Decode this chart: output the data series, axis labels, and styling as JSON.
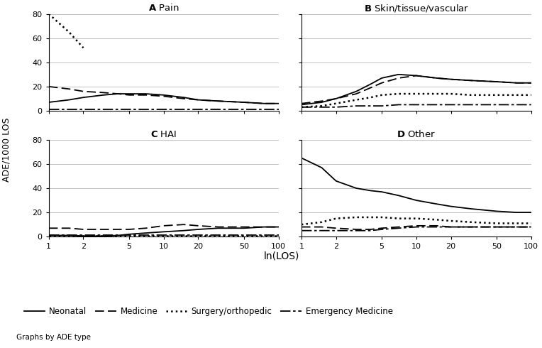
{
  "x_ticks": [
    1,
    2,
    5,
    10,
    20,
    50,
    100
  ],
  "x_values": [
    1,
    1.5,
    2,
    3,
    4,
    5,
    7,
    10,
    15,
    20,
    30,
    50,
    75,
    100
  ],
  "panels": [
    {
      "label": "A",
      "title": " Pain",
      "neonatal": [
        7,
        9,
        11,
        13,
        14,
        14,
        14,
        13,
        11,
        9,
        8,
        7,
        6,
        6
      ],
      "medicine": [
        20,
        18,
        16,
        15,
        14,
        13,
        13,
        12,
        10,
        9,
        8,
        7,
        6,
        6
      ],
      "surgery": [
        80,
        65,
        52,
        null,
        null,
        null,
        null,
        null,
        null,
        null,
        null,
        null,
        null,
        null
      ],
      "emergency": [
        1,
        1,
        1,
        1,
        1,
        1,
        1,
        1,
        1,
        1,
        1,
        1,
        1,
        1
      ]
    },
    {
      "label": "B",
      "title": " Skin/tissue/vascular",
      "neonatal": [
        5,
        7,
        10,
        16,
        22,
        27,
        30,
        29,
        27,
        26,
        25,
        24,
        23,
        23
      ],
      "medicine": [
        6,
        8,
        10,
        14,
        19,
        23,
        27,
        29,
        27,
        26,
        25,
        24,
        23,
        23
      ],
      "surgery": [
        3,
        4,
        6,
        9,
        11,
        13,
        14,
        14,
        14,
        14,
        13,
        13,
        13,
        13
      ],
      "emergency": [
        3,
        3,
        3,
        4,
        4,
        4,
        5,
        5,
        5,
        5,
        5,
        5,
        5,
        5
      ]
    },
    {
      "label": "C",
      "title": " HAI",
      "neonatal": [
        1,
        1,
        0.5,
        0.5,
        1,
        2,
        3,
        4,
        5,
        6,
        7,
        7,
        8,
        8
      ],
      "medicine": [
        7,
        7,
        6,
        6,
        6,
        6,
        7,
        9,
        10,
        9,
        8,
        8,
        8,
        8
      ],
      "surgery": [
        0.5,
        0.5,
        0.5,
        0.5,
        0.5,
        0.5,
        0.5,
        0.5,
        0.5,
        0.5,
        0.5,
        0.5,
        0.5,
        0.5
      ],
      "emergency": [
        1,
        1,
        1,
        1,
        1,
        1,
        1,
        1,
        1,
        1,
        1,
        1,
        1,
        1
      ]
    },
    {
      "label": "D",
      "title": " Other",
      "neonatal": [
        65,
        57,
        46,
        40,
        38,
        37,
        34,
        30,
        27,
        25,
        23,
        21,
        20,
        20
      ],
      "medicine": [
        8,
        8,
        7,
        6,
        6,
        7,
        8,
        9,
        9,
        8,
        8,
        8,
        8,
        8
      ],
      "surgery": [
        10,
        12,
        15,
        16,
        16,
        16,
        15,
        15,
        14,
        13,
        12,
        11,
        11,
        11
      ],
      "emergency": [
        5,
        5,
        5,
        5,
        5,
        6,
        7,
        8,
        8,
        8,
        8,
        8,
        8,
        8
      ]
    }
  ],
  "ylabel": "ADE/1000 LOS",
  "xlabel": "ln(LOS)",
  "ylim": [
    0,
    80
  ],
  "yticks": [
    0,
    20,
    40,
    60,
    80
  ],
  "legend_labels": [
    "Neonatal",
    "Medicine",
    "Surgery/orthopedic",
    "Emergency Medicine"
  ],
  "footnote": "Graphs by ADE type",
  "background": "#ffffff"
}
